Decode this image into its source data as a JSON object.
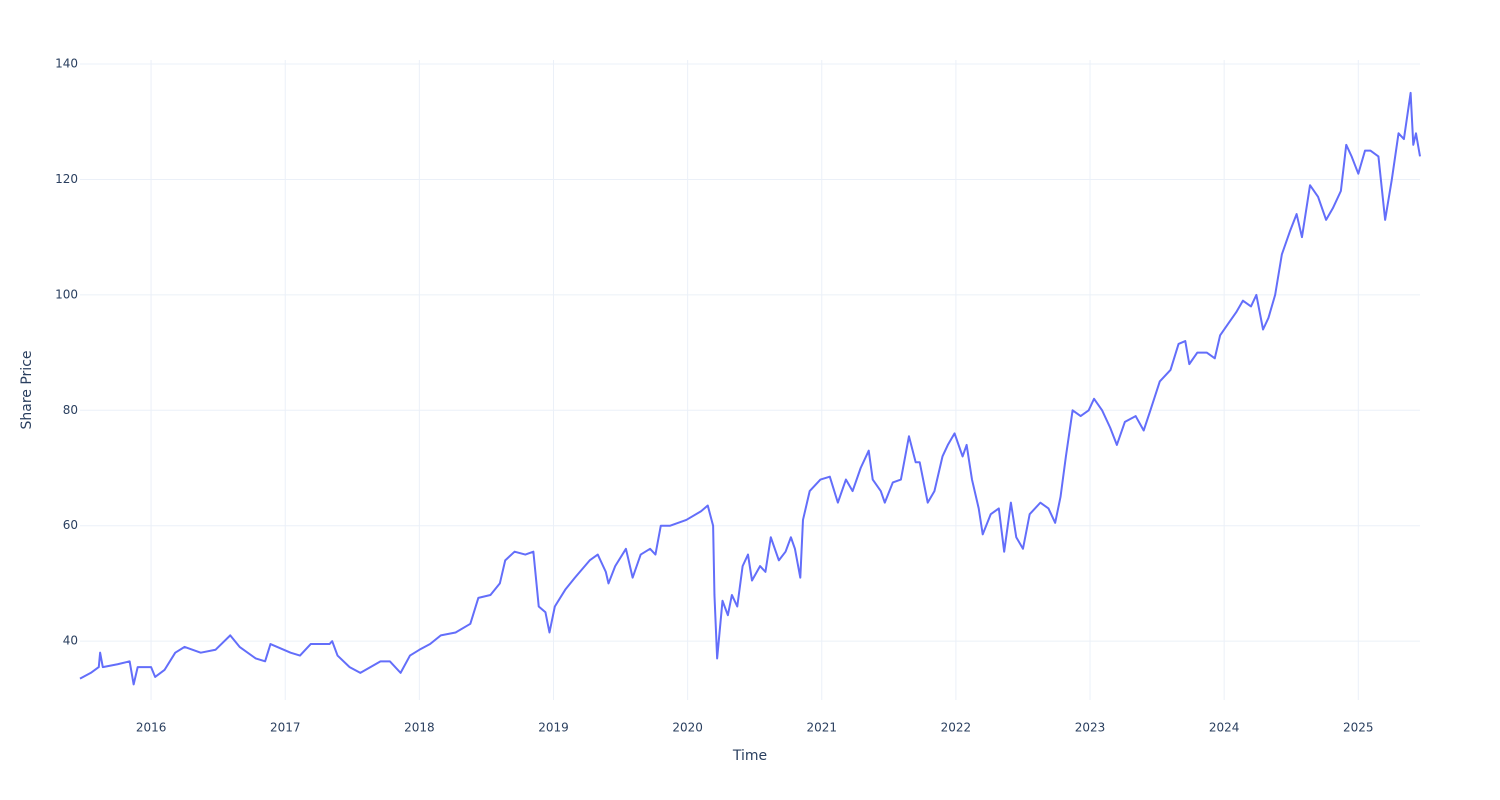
{
  "chart_data": {
    "type": "line",
    "x_label": "Time",
    "y_label": "Share Price",
    "xlim": [
      2015.47,
      2025.46
    ],
    "ylim": [
      29.8,
      140.7
    ],
    "xticks": [
      2016,
      2017,
      2018,
      2019,
      2020,
      2021,
      2022,
      2023,
      2024,
      2025
    ],
    "yticks": [
      40,
      60,
      80,
      100,
      120,
      140
    ],
    "grid": true,
    "x": [
      2015.47,
      2015.55,
      2015.61,
      2015.62,
      2015.64,
      2015.75,
      2015.84,
      2015.87,
      2015.9,
      2016.0,
      2016.03,
      2016.1,
      2016.18,
      2016.25,
      2016.37,
      2016.48,
      2016.59,
      2016.66,
      2016.78,
      2016.85,
      2016.89,
      2017.04,
      2017.11,
      2017.19,
      2017.33,
      2017.35,
      2017.39,
      2017.48,
      2017.56,
      2017.71,
      2017.78,
      2017.86,
      2017.93,
      2018.0,
      2018.08,
      2018.16,
      2018.27,
      2018.38,
      2018.44,
      2018.53,
      2018.6,
      2018.64,
      2018.71,
      2018.79,
      2018.85,
      2018.89,
      2018.94,
      2018.97,
      2019.01,
      2019.09,
      2019.16,
      2019.27,
      2019.33,
      2019.39,
      2019.41,
      2019.46,
      2019.54,
      2019.59,
      2019.65,
      2019.72,
      2019.76,
      2019.8,
      2019.87,
      2019.99,
      2020.1,
      2020.15,
      2020.19,
      2020.2,
      2020.22,
      2020.26,
      2020.3,
      2020.33,
      2020.37,
      2020.41,
      2020.45,
      2020.48,
      2020.54,
      2020.58,
      2020.62,
      2020.68,
      2020.73,
      2020.77,
      2020.8,
      2020.84,
      2020.86,
      2020.91,
      2020.99,
      2021.06,
      2021.12,
      2021.18,
      2021.23,
      2021.29,
      2021.35,
      2021.38,
      2021.44,
      2021.47,
      2021.53,
      2021.59,
      2021.65,
      2021.7,
      2021.73,
      2021.79,
      2021.84,
      2021.9,
      2021.94,
      2021.99,
      2022.05,
      2022.08,
      2022.12,
      2022.17,
      2022.2,
      2022.26,
      2022.32,
      2022.36,
      2022.41,
      2022.45,
      2022.5,
      2022.55,
      2022.63,
      2022.69,
      2022.74,
      2022.78,
      2022.82,
      2022.87,
      2022.93,
      2022.99,
      2023.03,
      2023.09,
      2023.15,
      2023.2,
      2023.26,
      2023.34,
      2023.4,
      2023.45,
      2023.52,
      2023.6,
      2023.66,
      2023.71,
      2023.74,
      2023.8,
      2023.87,
      2023.93,
      2023.97,
      2024.03,
      2024.09,
      2024.14,
      2024.2,
      2024.24,
      2024.29,
      2024.33,
      2024.38,
      2024.43,
      2024.49,
      2024.54,
      2024.58,
      2024.64,
      2024.7,
      2024.76,
      2024.81,
      2024.87,
      2024.91,
      2024.95,
      2025.0,
      2025.05,
      2025.09,
      2025.15,
      2025.2,
      2025.25,
      2025.3,
      2025.34,
      2025.39,
      2025.41,
      2025.43,
      2025.46
    ],
    "series": [
      {
        "name": "Share Price",
        "color": "#636efa",
        "values": [
          33.5,
          34.5,
          35.5,
          38,
          35.5,
          36,
          36.5,
          32.5,
          35.5,
          35.5,
          33.8,
          35,
          38,
          39,
          38,
          38.5,
          41,
          39,
          37,
          36.5,
          39.5,
          38,
          37.5,
          39.5,
          39.5,
          40,
          37.5,
          35.5,
          34.5,
          36.5,
          36.5,
          34.5,
          37.5,
          38.5,
          39.5,
          41,
          41.5,
          43,
          47.5,
          48,
          50,
          54,
          55.5,
          55,
          55.5,
          46,
          45,
          41.5,
          46,
          49,
          51,
          54,
          55,
          52,
          50,
          53,
          56,
          51,
          55,
          56,
          55,
          60,
          60,
          61,
          62.5,
          63.5,
          60,
          48,
          37,
          47,
          44.5,
          48,
          46,
          53,
          55,
          50.5,
          53,
          52,
          58,
          54,
          55.5,
          58,
          56,
          51,
          61,
          66,
          68,
          68.5,
          64,
          68,
          66,
          70,
          73,
          68,
          66,
          64,
          67.5,
          68,
          75.5,
          71,
          71,
          64,
          66,
          72,
          74,
          76,
          72,
          74,
          68,
          63,
          58.5,
          62,
          63,
          55.5,
          64,
          58,
          56,
          62,
          64,
          63,
          60.5,
          65,
          72,
          80,
          79,
          80,
          82,
          80,
          77,
          74,
          78,
          79,
          76.5,
          80,
          85,
          87,
          91.5,
          92,
          88,
          90,
          90,
          89,
          93,
          95,
          97,
          99,
          98,
          100,
          94,
          96,
          100,
          107,
          111,
          114,
          110,
          119,
          117,
          113,
          115,
          118,
          126,
          124,
          121,
          125,
          125,
          124,
          113,
          120,
          128,
          127,
          135,
          126,
          128,
          124
        ]
      }
    ]
  }
}
